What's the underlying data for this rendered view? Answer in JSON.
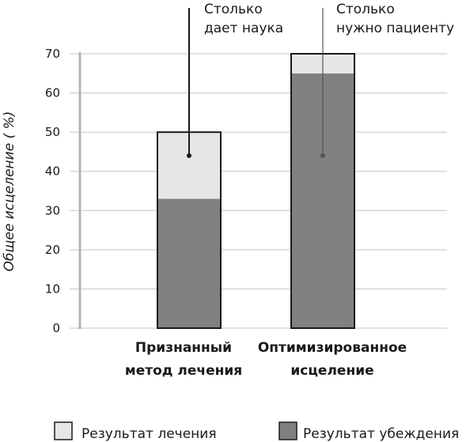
{
  "chart_data": {
    "type": "bar",
    "ylabel": "Общее исцеление ( %)",
    "ylim": [
      0,
      70
    ],
    "yticks": [
      0,
      10,
      20,
      30,
      40,
      50,
      60,
      70
    ],
    "grid": true,
    "categories": [
      [
        "Признанный",
        "метод лечения"
      ],
      [
        "Оптимизированное",
        "исцеление"
      ]
    ],
    "series": [
      {
        "name": "Результат убеждения",
        "values": [
          33,
          65
        ],
        "color": "#808083"
      },
      {
        "name": "Результат лечения",
        "values": [
          17,
          5
        ],
        "color": "#e6e6e6"
      }
    ],
    "annotations": [
      {
        "lines": [
          "Столько",
          "дает наука"
        ],
        "category_index": 0,
        "value": 44
      },
      {
        "lines": [
          "Столько",
          "нужно пациенту"
        ],
        "category_index": 1,
        "value": 44
      }
    ],
    "legend": {
      "position": "bottom",
      "items": [
        {
          "label": "Результат лечения",
          "color": "#e6e6e6"
        },
        {
          "label": "Результат убеждения",
          "color": "#808083"
        }
      ]
    }
  }
}
